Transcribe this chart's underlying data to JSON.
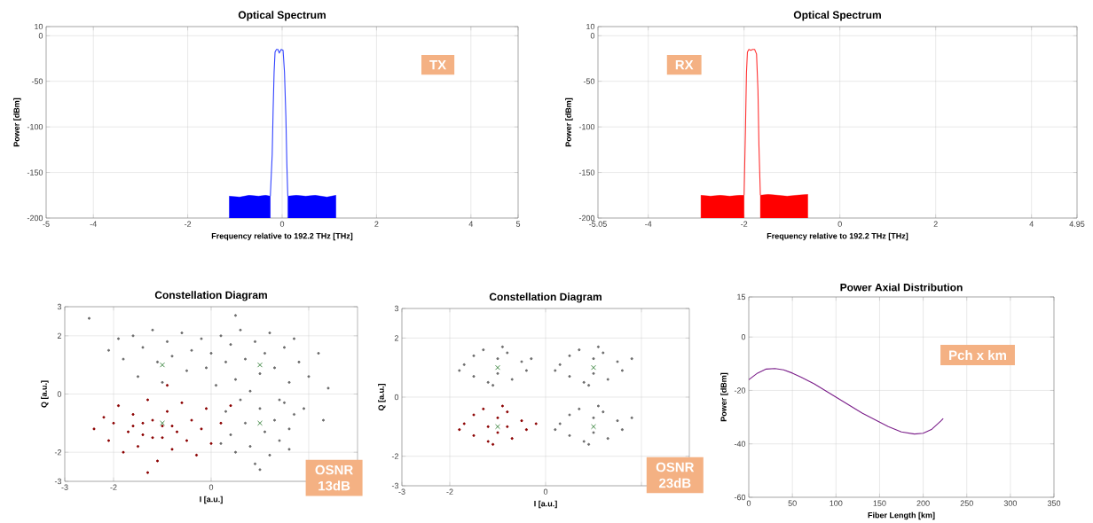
{
  "chart_data": [
    {
      "type": "line",
      "title": "Optical Spectrum",
      "xlabel": "Frequency relative to 192.2 THz [THz]",
      "ylabel": "Power [dBm]",
      "xlim": [
        -5,
        5
      ],
      "xticks": [
        -5,
        -4,
        -2,
        0,
        2,
        4,
        5
      ],
      "ylim": [
        -200,
        10
      ],
      "yticks": [
        -200,
        -150,
        -100,
        -50,
        0,
        10
      ],
      "grid": true,
      "annotations": [
        "TX"
      ],
      "series": [
        {
          "type": "area",
          "color": "#0000ff",
          "x": [
            -1.12,
            -1.12,
            -0.9,
            -0.7,
            -0.5,
            -0.35,
            -0.25,
            -0.25
          ],
          "values": [
            -200,
            -176,
            -177,
            -175,
            -176,
            -175,
            -176,
            -200
          ]
        },
        {
          "type": "area",
          "color": "#0000ff",
          "x": [
            0.12,
            0.12,
            0.3,
            0.5,
            0.7,
            0.95,
            1.14,
            1.14
          ],
          "values": [
            -200,
            -176,
            -175,
            -176,
            -175,
            -177,
            -175,
            -200
          ]
        },
        {
          "type": "line",
          "color": "#3344ff",
          "x": [
            -0.25,
            -0.21,
            -0.19,
            -0.17,
            -0.15,
            -0.12,
            -0.09,
            -0.06,
            -0.02,
            0.02,
            0.05,
            0.08,
            0.1,
            0.12
          ],
          "values": [
            -176,
            -130,
            -80,
            -40,
            -18,
            -15,
            -15,
            -19,
            -15,
            -16,
            -40,
            -90,
            -140,
            -176
          ]
        }
      ]
    },
    {
      "type": "line",
      "title": "Optical Spectrum",
      "xlabel": "Frequency relative to 192.2 THz [THz]",
      "ylabel": "Power [dBm]",
      "xlim": [
        -5.05,
        4.95
      ],
      "xticks": [
        -5.05,
        -4,
        -2,
        0,
        2,
        4,
        4.95
      ],
      "ylim": [
        -200,
        10
      ],
      "yticks": [
        -200,
        -150,
        -100,
        -50,
        0,
        10
      ],
      "grid": true,
      "annotations": [
        "RX"
      ],
      "series": [
        {
          "type": "area",
          "color": "#ff0000",
          "x": [
            -2.9,
            -2.9,
            -2.7,
            -2.5,
            -2.3,
            -2.1,
            -2.0,
            -2.0
          ],
          "values": [
            -200,
            -175,
            -176,
            -175,
            -176,
            -175,
            -175,
            -200
          ]
        },
        {
          "type": "area",
          "color": "#ff0000",
          "x": [
            -1.66,
            -1.66,
            -1.5,
            -1.3,
            -1.1,
            -0.9,
            -0.67,
            -0.67
          ],
          "values": [
            -200,
            -175,
            -174,
            -175,
            -176,
            -175,
            -174,
            -200
          ]
        },
        {
          "type": "line",
          "color": "#ff3333",
          "x": [
            -2.0,
            -1.97,
            -1.95,
            -1.93,
            -1.9,
            -1.86,
            -1.82,
            -1.78,
            -1.74,
            -1.71,
            -1.69,
            -1.66
          ],
          "values": [
            -175,
            -100,
            -40,
            -18,
            -15,
            -16,
            -15,
            -15,
            -20,
            -60,
            -120,
            -175
          ]
        }
      ]
    },
    {
      "type": "scatter",
      "title": "Constellation Diagram",
      "xlabel": "I [a.u.]",
      "ylabel": "Q [a.u.]",
      "xlim": [
        -3,
        3
      ],
      "xticks": [
        -3,
        -2,
        0,
        {
          "value": 2,
          "label": null
        }
      ],
      "ylim": [
        -3,
        3
      ],
      "yticks": [
        -3,
        -2,
        0,
        2,
        3
      ],
      "grid": true,
      "annotations": [
        "OSNR 13dB"
      ],
      "series": [
        {
          "color": "#6b6b6b",
          "marker": "circle",
          "x": [
            -2.1,
            -1.9,
            -1.8,
            -1.6,
            -1.5,
            -1.4,
            -1.2,
            -1.1,
            -1.0,
            -0.9,
            -0.8,
            -0.6,
            -0.5,
            -0.4,
            -0.2,
            -0.1,
            0.0,
            0.1,
            0.2,
            0.3,
            0.4,
            0.5,
            0.6,
            0.7,
            0.8,
            0.9,
            1.0,
            1.1,
            1.2,
            1.3,
            1.4,
            1.5,
            1.6,
            1.7,
            1.8,
            1.9,
            2.0,
            2.2,
            2.4,
            -2.5,
            0.5,
            2.3,
            0.3,
            0.4,
            0.5,
            0.6,
            0.7,
            0.8,
            0.9,
            1.0,
            1.1,
            1.2,
            1.3,
            1.4,
            1.5,
            1.6,
            1.7,
            1.6,
            0.2,
            1.0
          ],
          "values": [
            1.5,
            1.9,
            1.2,
            2.0,
            0.6,
            1.6,
            2.2,
            1.1,
            0.4,
            1.8,
            1.3,
            2.1,
            0.8,
            1.5,
            1.9,
            0.9,
            1.4,
            0.3,
            2.0,
            1.1,
            1.7,
            0.5,
            2.2,
            1.2,
            0.1,
            1.8,
            0.7,
            1.4,
            2.1,
            0.9,
            -0.2,
            1.6,
            0.4,
            1.9,
            1.1,
            -0.5,
            0.6,
            1.4,
            0.2,
            2.6,
            2.7,
            -0.9,
            -0.6,
            -1.4,
            -2.0,
            -0.2,
            -1.0,
            -1.8,
            -2.4,
            -0.5,
            -1.3,
            -2.1,
            -0.9,
            -1.6,
            -0.3,
            -1.2,
            -0.7,
            -1.9,
            -1.7,
            -2.6
          ]
        },
        {
          "color": "#8b0000",
          "marker": "circle",
          "x": [
            -2.4,
            -2.2,
            -2.1,
            -2.0,
            -1.9,
            -1.8,
            -1.7,
            -1.6,
            -1.5,
            -1.4,
            -1.3,
            -1.2,
            -1.1,
            -1.0,
            -0.9,
            -0.8,
            -0.7,
            -0.6,
            -0.5,
            -0.4,
            -0.3,
            -0.2,
            -0.1,
            0.0,
            0.2,
            0.4,
            -1.3,
            -0.9,
            -1.6,
            -1.2,
            -0.8,
            -1.0,
            -1.4
          ],
          "values": [
            -1.2,
            -0.8,
            -1.6,
            -1.0,
            -0.4,
            -2.0,
            -1.3,
            -0.7,
            -1.8,
            -1.0,
            -0.2,
            -1.5,
            -2.3,
            -1.1,
            -0.6,
            -1.9,
            -1.3,
            -0.3,
            -1.6,
            -0.9,
            -2.1,
            -1.2,
            -0.5,
            -1.7,
            -1.0,
            -0.4,
            -2.7,
            0.3,
            -1.1,
            -0.9,
            -1.1,
            -1.5,
            -1.4
          ]
        },
        {
          "color": "#2e7d32",
          "marker": "cross",
          "x": [
            -1,
            1,
            1,
            -1
          ],
          "values": [
            1,
            1,
            -1,
            -1
          ]
        }
      ]
    },
    {
      "type": "scatter",
      "title": "Constellation Diagram",
      "xlabel": "I [a.u.]",
      "ylabel": "Q [a.u.]",
      "xlim": [
        -3,
        3
      ],
      "xticks": [
        -3,
        -2,
        0,
        {
          "value": 2,
          "label": null
        }
      ],
      "ylim": [
        -3,
        3
      ],
      "yticks": [
        -3,
        -2,
        0,
        2,
        3
      ],
      "grid": true,
      "annotations": [
        "OSNR 23dB"
      ],
      "series": [
        {
          "color": "#6b6b6b",
          "marker": "circle",
          "x": [
            -1.7,
            -1.5,
            -1.5,
            -1.3,
            -1.2,
            -1.0,
            -1.0,
            -0.8,
            -0.7,
            -0.5,
            -0.4,
            -0.3,
            -1.8,
            -0.9,
            -1.1,
            0.3,
            0.5,
            0.5,
            0.7,
            0.8,
            1.0,
            1.0,
            1.2,
            1.3,
            1.5,
            1.6,
            1.8,
            0.2,
            1.1,
            0.9,
            0.3,
            0.5,
            0.5,
            0.7,
            0.8,
            1.0,
            1.0,
            1.2,
            1.3,
            1.5,
            1.6,
            1.8,
            0.2,
            1.1,
            0.9
          ],
          "values": [
            1.1,
            1.4,
            0.7,
            1.6,
            0.5,
            1.3,
            0.8,
            1.5,
            0.6,
            1.2,
            0.9,
            1.3,
            0.9,
            1.7,
            0.4,
            1.1,
            1.4,
            0.7,
            1.6,
            0.5,
            1.3,
            0.8,
            1.5,
            0.6,
            1.2,
            0.9,
            1.3,
            0.9,
            1.7,
            0.4,
            -0.9,
            -0.6,
            -1.3,
            -0.4,
            -1.5,
            -0.7,
            -1.2,
            -0.5,
            -1.4,
            -0.8,
            -1.1,
            -0.7,
            -1.1,
            -0.3,
            -1.6
          ]
        },
        {
          "color": "#8b0000",
          "marker": "circle",
          "x": [
            -1.7,
            -1.5,
            -1.5,
            -1.3,
            -1.2,
            -1.0,
            -1.0,
            -0.8,
            -0.7,
            -0.5,
            -0.4,
            -0.2,
            -1.8,
            -0.9,
            -1.1,
            -1.2,
            -0.8
          ],
          "values": [
            -0.9,
            -0.6,
            -1.3,
            -0.4,
            -1.5,
            -0.7,
            -1.2,
            -0.5,
            -1.4,
            -0.8,
            -1.1,
            -0.9,
            -1.1,
            -0.3,
            -1.6,
            -1.0,
            -1.0
          ]
        },
        {
          "color": "#2e7d32",
          "marker": "cross",
          "x": [
            -1,
            1,
            1,
            -1
          ],
          "values": [
            1,
            1,
            -1,
            -1
          ]
        }
      ]
    },
    {
      "type": "line",
      "title": "Power Axial Distribution",
      "xlabel": "Fiber Length [km]",
      "ylabel": "Power [dBm]",
      "xlim": [
        0,
        350
      ],
      "xticks": [
        0,
        50,
        100,
        150,
        200,
        250,
        300,
        350
      ],
      "ylim": [
        -60,
        15
      ],
      "yticks": [
        -60,
        -40,
        -20,
        0,
        15
      ],
      "grid": true,
      "annotations": [
        "Pch x km"
      ],
      "series": [
        {
          "color": "#7b1f8a",
          "x": [
            0,
            10,
            20,
            30,
            40,
            50,
            60,
            75,
            90,
            100,
            115,
            130,
            145,
            160,
            175,
            190,
            200,
            210,
            220,
            223
          ],
          "values": [
            -16,
            -13.5,
            -12,
            -11.8,
            -12.3,
            -13.5,
            -15,
            -17.5,
            -20.5,
            -22.5,
            -25.5,
            -28.5,
            -31,
            -33.5,
            -35.5,
            -36.3,
            -36,
            -34.5,
            -31.5,
            -30.5
          ]
        }
      ]
    }
  ]
}
